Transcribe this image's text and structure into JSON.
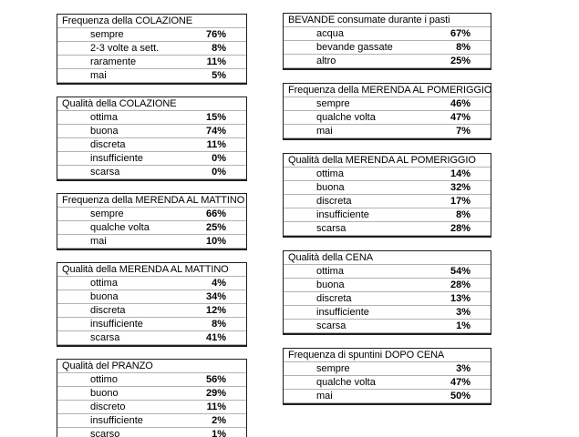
{
  "page": {
    "background_color": "#ffffff",
    "text_color": "#000000",
    "table_border_color": "#1f1f1f",
    "row_separator_color": "#b3b3b3"
  },
  "columns": {
    "left": [
      {
        "title": "Frequenza della COLAZIONE",
        "rows": [
          {
            "label": "sempre",
            "value": "76%"
          },
          {
            "label": "2-3 volte a sett.",
            "value": "8%"
          },
          {
            "label": "raramente",
            "value": "11%"
          },
          {
            "label": "mai",
            "value": "5%"
          }
        ]
      },
      {
        "title": "Qualità della COLAZIONE",
        "rows": [
          {
            "label": "ottima",
            "value": "15%"
          },
          {
            "label": "buona",
            "value": "74%"
          },
          {
            "label": "discreta",
            "value": "11%"
          },
          {
            "label": "insufficiente",
            "value": "0%"
          },
          {
            "label": "scarsa",
            "value": "0%"
          }
        ]
      },
      {
        "title": "Frequenza della MERENDA AL MATTINO",
        "rows": [
          {
            "label": "sempre",
            "value": "66%"
          },
          {
            "label": "qualche volta",
            "value": "25%"
          },
          {
            "label": "mai",
            "value": "10%"
          }
        ]
      },
      {
        "title": "Qualità della MERENDA AL MATTINO",
        "rows": [
          {
            "label": "ottima",
            "value": "4%"
          },
          {
            "label": "buona",
            "value": "34%"
          },
          {
            "label": "discreta",
            "value": "12%"
          },
          {
            "label": "insufficiente",
            "value": "8%"
          },
          {
            "label": "scarsa",
            "value": "41%"
          }
        ]
      },
      {
        "title": "Qualità del PRANZO",
        "rows": [
          {
            "label": "ottimo",
            "value": "56%"
          },
          {
            "label": "buono",
            "value": "29%"
          },
          {
            "label": "discreto",
            "value": "11%"
          },
          {
            "label": "insufficiente",
            "value": "2%"
          },
          {
            "label": "scarso",
            "value": "1%"
          }
        ]
      }
    ],
    "right": [
      {
        "title": "BEVANDE consumate durante i pasti",
        "rows": [
          {
            "label": "acqua",
            "value": "67%"
          },
          {
            "label": "bevande gassate",
            "value": "8%"
          },
          {
            "label": "altro",
            "value": "25%"
          }
        ]
      },
      {
        "title": "Frequenza della MERENDA AL POMERIGGIO",
        "rows": [
          {
            "label": "sempre",
            "value": "46%"
          },
          {
            "label": "qualche volta",
            "value": "47%"
          },
          {
            "label": "mai",
            "value": "7%"
          }
        ]
      },
      {
        "title": "Qualità della MERENDA AL POMERIGGIO",
        "rows": [
          {
            "label": "ottima",
            "value": "14%"
          },
          {
            "label": "buona",
            "value": "32%"
          },
          {
            "label": "discreta",
            "value": "17%"
          },
          {
            "label": "insufficiente",
            "value": "8%"
          },
          {
            "label": "scarsa",
            "value": "28%"
          }
        ]
      },
      {
        "title": "Qualità della CENA",
        "rows": [
          {
            "label": "ottima",
            "value": "54%"
          },
          {
            "label": "buona",
            "value": "28%"
          },
          {
            "label": "discreta",
            "value": "13%"
          },
          {
            "label": "insufficiente",
            "value": "3%"
          },
          {
            "label": "scarsa",
            "value": "1%"
          }
        ]
      },
      {
        "title": "Frequenza di spuntini DOPO CENA",
        "rows": [
          {
            "label": "sempre",
            "value": "3%"
          },
          {
            "label": "qualche volta",
            "value": "47%"
          },
          {
            "label": "mai",
            "value": "50%"
          }
        ]
      }
    ]
  }
}
